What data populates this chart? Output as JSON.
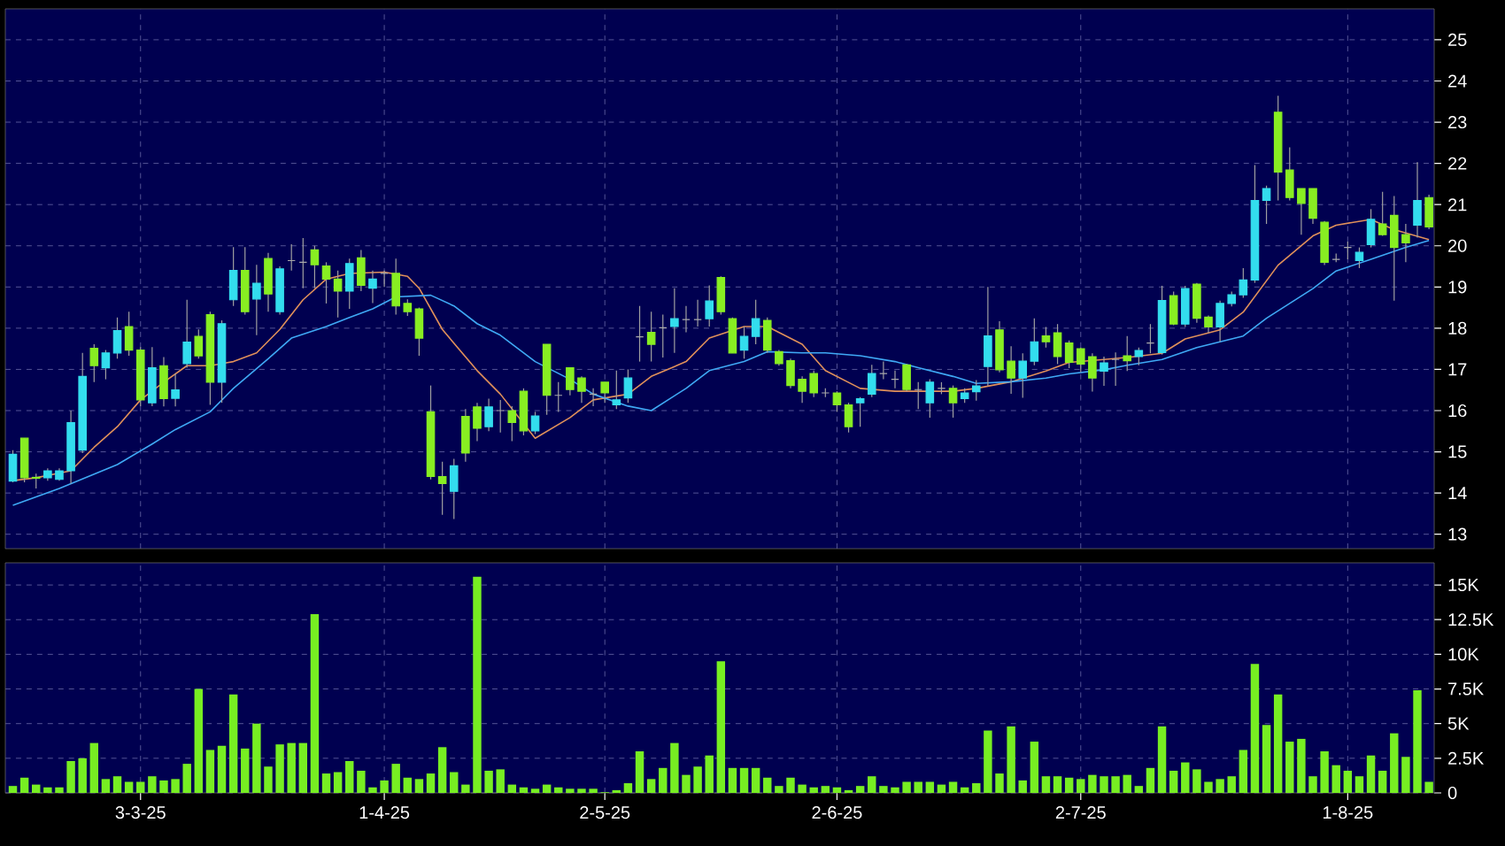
{
  "chart_data": [
    {
      "type": "candlestick",
      "categories": [
        null,
        null,
        null,
        null,
        null,
        null,
        null,
        null,
        null,
        null,
        null,
        null,
        null,
        null,
        null,
        null,
        null,
        null,
        null,
        null,
        null,
        null,
        null,
        null,
        null,
        null,
        null,
        null,
        null,
        null,
        null,
        null,
        null,
        null,
        null,
        null,
        null,
        null,
        null,
        null,
        null,
        null,
        null,
        null,
        null,
        null,
        null,
        null,
        null,
        null,
        null,
        null,
        null,
        null,
        null,
        null,
        null,
        null,
        null,
        null,
        null,
        null,
        null,
        null,
        null,
        null,
        null,
        null,
        null,
        null,
        null,
        null,
        null,
        null,
        null,
        null,
        null,
        null,
        null,
        null,
        null,
        null,
        null,
        null,
        null,
        null,
        null,
        null,
        null,
        null,
        null,
        null,
        null,
        null,
        null,
        null,
        null,
        null,
        null,
        null,
        null,
        null,
        null,
        null,
        null,
        null,
        null,
        null,
        null,
        null,
        null,
        null,
        null,
        null,
        null,
        null,
        null,
        null,
        null,
        null,
        null,
        null,
        null
      ],
      "ohlc": [
        [
          14.29,
          15.04,
          14.26,
          14.94
        ],
        [
          15.33,
          15.33,
          14.26,
          14.37
        ],
        [
          14.38,
          14.47,
          14.11,
          14.36
        ],
        [
          14.37,
          14.6,
          14.3,
          14.54
        ],
        [
          14.33,
          14.6,
          14.3,
          14.54
        ],
        [
          14.54,
          16.0,
          14.23,
          15.71
        ],
        [
          15.04,
          17.4,
          14.97,
          16.83
        ],
        [
          17.51,
          17.61,
          16.69,
          17.09
        ],
        [
          17.04,
          17.47,
          16.76,
          17.4
        ],
        [
          17.4,
          18.26,
          17.26,
          17.94
        ],
        [
          18.04,
          18.4,
          17.33,
          17.47
        ],
        [
          17.47,
          17.54,
          16.11,
          16.26
        ],
        [
          16.19,
          17.54,
          16.11,
          17.04
        ],
        [
          17.09,
          17.3,
          16.1,
          16.29
        ],
        [
          16.3,
          16.9,
          16.1,
          16.5
        ],
        [
          17.14,
          18.69,
          17.04,
          17.66
        ],
        [
          17.8,
          17.97,
          17.26,
          17.33
        ],
        [
          18.33,
          18.4,
          16.14,
          16.69
        ],
        [
          16.69,
          18.19,
          16.19,
          18.11
        ],
        [
          18.69,
          19.97,
          18.54,
          19.4
        ],
        [
          19.4,
          19.97,
          18.33,
          18.4
        ],
        [
          18.71,
          19.54,
          17.83,
          19.09
        ],
        [
          19.69,
          19.83,
          18.4,
          18.83
        ],
        [
          18.4,
          19.5,
          18.33,
          19.44
        ],
        [
          19.64,
          20.04,
          19.4,
          19.64
        ],
        [
          19.6,
          20.19,
          18.97,
          19.6
        ],
        [
          19.9,
          20.0,
          18.97,
          19.54
        ],
        [
          19.51,
          19.6,
          18.6,
          19.19
        ],
        [
          19.19,
          19.4,
          18.26,
          18.9
        ],
        [
          18.9,
          19.69,
          18.47,
          19.57
        ],
        [
          19.71,
          19.9,
          18.9,
          19.04
        ],
        [
          18.97,
          19.4,
          18.61,
          19.19
        ],
        [
          19.33,
          19.4,
          19.0,
          19.33
        ],
        [
          19.33,
          19.69,
          18.33,
          18.54
        ],
        [
          18.6,
          18.7,
          18.3,
          18.4
        ],
        [
          18.47,
          18.5,
          17.33,
          17.76
        ],
        [
          15.97,
          16.61,
          14.33,
          14.4
        ],
        [
          14.4,
          14.76,
          13.47,
          14.23
        ],
        [
          14.04,
          14.83,
          13.37,
          14.66
        ],
        [
          15.86,
          16.04,
          14.76,
          14.97
        ],
        [
          16.09,
          16.19,
          15.26,
          15.57
        ],
        [
          15.61,
          16.29,
          15.5,
          16.09
        ],
        [
          16.0,
          16.26,
          15.47,
          16.0
        ],
        [
          16.0,
          16.11,
          15.26,
          15.71
        ],
        [
          16.47,
          16.54,
          15.4,
          15.51
        ],
        [
          15.51,
          15.97,
          15.43,
          15.87
        ],
        [
          17.61,
          17.61,
          15.9,
          16.37
        ],
        [
          16.37,
          16.69,
          15.97,
          16.37
        ],
        [
          17.04,
          17.04,
          16.37,
          16.51
        ],
        [
          16.79,
          16.83,
          16.19,
          16.47
        ],
        [
          16.4,
          16.54,
          16.11,
          16.4
        ],
        [
          16.69,
          16.69,
          16.19,
          16.43
        ],
        [
          16.14,
          16.97,
          16.04,
          16.26
        ],
        [
          16.31,
          17.0,
          16.19,
          16.79
        ],
        [
          17.79,
          18.54,
          17.19,
          17.79
        ],
        [
          17.9,
          18.4,
          17.19,
          17.61
        ],
        [
          18.01,
          18.33,
          17.29,
          18.01
        ],
        [
          18.04,
          18.97,
          17.4,
          18.23
        ],
        [
          18.21,
          18.54,
          17.9,
          18.21
        ],
        [
          18.21,
          18.69,
          18.04,
          18.21
        ],
        [
          18.23,
          19.04,
          18.04,
          18.66
        ],
        [
          19.23,
          19.26,
          18.33,
          18.4
        ],
        [
          18.23,
          18.26,
          17.4,
          17.4
        ],
        [
          17.47,
          18.04,
          17.26,
          17.8
        ],
        [
          17.8,
          18.69,
          17.61,
          18.23
        ],
        [
          18.19,
          18.26,
          17.4,
          17.47
        ],
        [
          17.43,
          17.47,
          17.09,
          17.14
        ],
        [
          17.21,
          17.26,
          16.54,
          16.61
        ],
        [
          16.76,
          16.83,
          16.19,
          16.47
        ],
        [
          16.9,
          16.97,
          16.33,
          16.43
        ],
        [
          16.43,
          16.54,
          16.33,
          16.43
        ],
        [
          16.43,
          16.47,
          15.97,
          16.14
        ],
        [
          16.14,
          16.19,
          15.47,
          15.61
        ],
        [
          16.19,
          16.33,
          15.61,
          16.29
        ],
        [
          16.4,
          17.11,
          16.33,
          16.9
        ],
        [
          16.9,
          17.19,
          16.76,
          16.9
        ],
        [
          16.76,
          16.97,
          16.54,
          16.76
        ],
        [
          17.11,
          17.14,
          16.47,
          16.51
        ],
        [
          16.51,
          16.69,
          16.04,
          16.51
        ],
        [
          16.19,
          16.76,
          15.83,
          16.69
        ],
        [
          16.54,
          16.69,
          16.4,
          16.54
        ],
        [
          16.54,
          16.61,
          15.83,
          16.19
        ],
        [
          16.29,
          16.54,
          16.19,
          16.43
        ],
        [
          16.46,
          16.74,
          16.24,
          16.6
        ],
        [
          17.07,
          19.0,
          16.6,
          17.81
        ],
        [
          17.96,
          18.17,
          16.93,
          16.99
        ],
        [
          17.2,
          17.56,
          16.41,
          16.79
        ],
        [
          16.79,
          17.39,
          16.31,
          17.2
        ],
        [
          17.2,
          18.24,
          17.1,
          17.67
        ],
        [
          17.81,
          18.03,
          17.53,
          17.67
        ],
        [
          17.89,
          18.1,
          17.13,
          17.31
        ],
        [
          17.64,
          17.7,
          17.03,
          17.17
        ],
        [
          17.5,
          17.53,
          16.93,
          17.13
        ],
        [
          17.31,
          17.39,
          16.46,
          16.79
        ],
        [
          16.96,
          17.31,
          16.6,
          17.16
        ],
        [
          17.24,
          17.41,
          16.6,
          17.24
        ],
        [
          17.33,
          17.81,
          16.96,
          17.21
        ],
        [
          17.31,
          17.53,
          17.1,
          17.46
        ],
        [
          17.64,
          18.1,
          17.39,
          17.64
        ],
        [
          17.41,
          19.03,
          17.36,
          18.67
        ],
        [
          18.79,
          18.89,
          18.07,
          18.1
        ],
        [
          18.1,
          19.03,
          18.03,
          18.96
        ],
        [
          19.07,
          19.1,
          18.13,
          18.24
        ],
        [
          18.27,
          18.31,
          17.89,
          18.03
        ],
        [
          18.03,
          18.67,
          17.67,
          18.6
        ],
        [
          18.6,
          18.89,
          18.53,
          18.81
        ],
        [
          18.81,
          19.46,
          18.74,
          19.17
        ],
        [
          19.17,
          21.96,
          19.1,
          21.1
        ],
        [
          21.1,
          21.46,
          20.53,
          21.39
        ],
        [
          23.24,
          23.64,
          21.1,
          21.79
        ],
        [
          21.84,
          22.39,
          21.1,
          21.17
        ],
        [
          21.39,
          21.39,
          20.27,
          21.03
        ],
        [
          21.39,
          21.39,
          20.53,
          20.67
        ],
        [
          20.57,
          20.6,
          19.53,
          19.6
        ],
        [
          19.67,
          19.81,
          19.6,
          19.67
        ],
        [
          19.96,
          20.1,
          19.67,
          19.96
        ],
        [
          19.64,
          19.96,
          19.46,
          19.84
        ],
        [
          20.03,
          20.89,
          19.96,
          20.64
        ],
        [
          20.53,
          21.31,
          20.24,
          20.27
        ],
        [
          20.74,
          21.21,
          18.67,
          19.96
        ],
        [
          20.27,
          20.53,
          19.6,
          20.07
        ],
        [
          20.5,
          22.03,
          20.2,
          21.1
        ],
        [
          21.17,
          21.24,
          20.4,
          20.46
        ]
      ],
      "colors": [
        "#33ddee",
        "#88ee22",
        "#88ee22",
        "#33ddee",
        "#33ddee",
        "#33ddee",
        "#33ddee",
        "#88ee22",
        "#33ddee",
        "#33ddee",
        "#88ee22",
        "#88ee22",
        "#33ddee",
        "#88ee22",
        "#33ddee",
        "#33ddee",
        "#88ee22",
        "#88ee22",
        "#33ddee",
        "#33ddee",
        "#88ee22",
        "#33ddee",
        "#88ee22",
        "#33ddee",
        "#aaaaaa",
        "#aaaaaa",
        "#88ee22",
        "#88ee22",
        "#88ee22",
        "#33ddee",
        "#88ee22",
        "#33ddee",
        "#aaaaaa",
        "#88ee22",
        "#88ee22",
        "#88ee22",
        "#88ee22",
        "#88ee22",
        "#33ddee",
        "#88ee22",
        "#88ee22",
        "#33ddee",
        "#aaaaaa",
        "#88ee22",
        "#88ee22",
        "#33ddee",
        "#88ee22",
        "#aaaaaa",
        "#88ee22",
        "#88ee22",
        "#aaaaaa",
        "#88ee22",
        "#33ddee",
        "#33ddee",
        "#aaaaaa",
        "#88ee22",
        "#aaaaaa",
        "#33ddee",
        "#aaaaaa",
        "#aaaaaa",
        "#33ddee",
        "#88ee22",
        "#88ee22",
        "#33ddee",
        "#33ddee",
        "#88ee22",
        "#88ee22",
        "#88ee22",
        "#88ee22",
        "#88ee22",
        "#aaaaaa",
        "#88ee22",
        "#88ee22",
        "#33ddee",
        "#33ddee",
        "#aaaaaa",
        "#aaaaaa",
        "#88ee22",
        "#aaaaaa",
        "#33ddee",
        "#aaaaaa",
        "#88ee22",
        "#33ddee",
        "#33ddee",
        "#33ddee",
        "#88ee22",
        "#88ee22",
        "#33ddee",
        "#33ddee",
        "#88ee22",
        "#88ee22",
        "#88ee22",
        "#88ee22",
        "#88ee22",
        "#33ddee",
        "#aaaaaa",
        "#88ee22",
        "#33ddee",
        "#aaaaaa",
        "#33ddee",
        "#88ee22",
        "#33ddee",
        "#88ee22",
        "#88ee22",
        "#33ddee",
        "#33ddee",
        "#33ddee",
        "#33ddee",
        "#33ddee",
        "#88ee22",
        "#88ee22",
        "#88ee22",
        "#88ee22",
        "#88ee22",
        "#aaaaaa",
        "#aaaaaa",
        "#33ddee",
        "#33ddee",
        "#88ee22",
        "#88ee22",
        "#88ee22",
        "#33ddee",
        "#88ee22"
      ],
      "series": [
        {
          "type": "line",
          "color": "#e0905a",
          "values": [
            14.3,
            null,
            14.37,
            null,
            null,
            14.54,
            null,
            15.11,
            null,
            15.61,
            null,
            16.26,
            null,
            16.69,
            null,
            17.09,
            null,
            17.09,
            null,
            17.19,
            null,
            17.4,
            null,
            17.97,
            null,
            18.69,
            null,
            19.19,
            null,
            19.33,
            null,
            null,
            19.36,
            null,
            19.26,
            18.97,
            null,
            17.97,
            null,
            null,
            16.97,
            null,
            16.4,
            null,
            null,
            15.33,
            null,
            null,
            15.83,
            null,
            16.26,
            null,
            null,
            16.4,
            null,
            16.83,
            null,
            null,
            17.19,
            null,
            17.76,
            null,
            null,
            18.04,
            null,
            18.04,
            null,
            null,
            17.61,
            null,
            16.97,
            null,
            null,
            16.54,
            null,
            null,
            16.47,
            null,
            16.47,
            null,
            null,
            16.47,
            null,
            16.54,
            null,
            null,
            16.7,
            null,
            null,
            16.96,
            null,
            17.17,
            null,
            null,
            17.24,
            null,
            17.29,
            null,
            null,
            17.39,
            null,
            17.74,
            null,
            null,
            17.96,
            null,
            18.39,
            null,
            null,
            19.53,
            null,
            null,
            20.24,
            null,
            20.5,
            null,
            null,
            20.64,
            null,
            20.39,
            null,
            null,
            20.15
          ]
        },
        {
          "type": "line",
          "color": "#3fa9f5",
          "values": [
            13.7,
            null,
            null,
            null,
            14.11,
            null,
            null,
            null,
            null,
            14.69,
            null,
            null,
            15.19,
            null,
            15.54,
            null,
            null,
            15.97,
            null,
            16.54,
            null,
            null,
            17.26,
            null,
            17.76,
            null,
            null,
            18.04,
            null,
            18.26,
            null,
            18.47,
            null,
            18.76,
            null,
            null,
            18.8,
            null,
            18.54,
            null,
            18.11,
            null,
            17.83,
            null,
            null,
            17.19,
            null,
            null,
            16.76,
            null,
            16.4,
            null,
            null,
            16.11,
            null,
            16.0,
            null,
            null,
            16.54,
            null,
            16.97,
            null,
            null,
            17.19,
            null,
            17.43,
            null,
            null,
            17.4,
            null,
            17.4,
            null,
            null,
            17.33,
            null,
            null,
            17.19,
            null,
            17.04,
            null,
            null,
            16.83,
            null,
            16.66,
            null,
            null,
            16.7,
            null,
            null,
            16.79,
            null,
            16.89,
            null,
            null,
            16.99,
            null,
            17.1,
            null,
            null,
            17.24,
            null,
            null,
            17.53,
            null,
            null,
            null,
            17.81,
            null,
            18.24,
            null,
            null,
            null,
            18.96,
            null,
            19.39,
            null,
            null,
            19.67,
            null,
            null,
            19.96,
            null,
            20.13
          ]
        }
      ],
      "ylim": [
        12.65,
        25.75
      ],
      "yticks": [
        13,
        14,
        15,
        16,
        17,
        18,
        19,
        20,
        21,
        22,
        23,
        24,
        25
      ],
      "grid": true,
      "tick_labels": "y"
    },
    {
      "type": "bar",
      "categories": [
        null,
        null,
        null,
        null,
        null,
        null,
        null,
        null,
        null,
        null,
        null,
        "3-3-25",
        null,
        null,
        null,
        null,
        null,
        null,
        null,
        null,
        null,
        null,
        null,
        null,
        null,
        null,
        null,
        null,
        null,
        null,
        null,
        null,
        "1-4-25",
        null,
        null,
        null,
        null,
        null,
        null,
        null,
        null,
        null,
        null,
        null,
        null,
        null,
        null,
        null,
        null,
        null,
        null,
        "2-5-25",
        null,
        null,
        null,
        null,
        null,
        null,
        null,
        null,
        null,
        null,
        null,
        null,
        null,
        null,
        null,
        null,
        null,
        null,
        null,
        "2-6-25",
        null,
        null,
        null,
        null,
        null,
        null,
        null,
        null,
        null,
        null,
        null,
        null,
        null,
        null,
        null,
        null,
        null,
        null,
        null,
        null,
        "2-7-25",
        null,
        null,
        null,
        null,
        null,
        null,
        null,
        null,
        null,
        null,
        null,
        null,
        null,
        null,
        null,
        null,
        null,
        null,
        null,
        null,
        null,
        null,
        "1-8-25",
        null,
        null,
        null,
        null,
        null,
        null,
        null
      ],
      "values": [
        500,
        1100,
        600,
        400,
        400,
        2300,
        2500,
        3600,
        1000,
        1200,
        800,
        800,
        1200,
        900,
        1000,
        2100,
        7500,
        3100,
        3400,
        7100,
        3200,
        5000,
        1900,
        3500,
        3600,
        3600,
        12900,
        1400,
        1500,
        2300,
        1600,
        400,
        900,
        2100,
        1100,
        1000,
        1400,
        3300,
        1500,
        600,
        15600,
        1600,
        1700,
        600,
        400,
        300,
        600,
        400,
        300,
        300,
        300,
        50,
        200,
        700,
        3000,
        1000,
        1800,
        3600,
        1300,
        1900,
        2700,
        9500,
        1800,
        1800,
        1800,
        1100,
        500,
        1100,
        600,
        400,
        500,
        400,
        200,
        500,
        1200,
        500,
        400,
        800,
        800,
        800,
        600,
        800,
        400,
        700,
        4500,
        1400,
        4800,
        900,
        3700,
        1200,
        1200,
        1100,
        1000,
        1300,
        1200,
        1200,
        1300,
        500,
        1800,
        4800,
        1600,
        2200,
        1700,
        800,
        1000,
        1200,
        3100,
        9300,
        4900,
        7100,
        3700,
        3900,
        1200,
        3000,
        2000,
        1600,
        1200,
        2700,
        1600,
        4300,
        2600,
        7400,
        800
      ],
      "color": "#77ee22",
      "ylim": [
        0,
        16600
      ],
      "yticks": [
        0,
        {
          "value": 2500,
          "label": "2.5K"
        },
        {
          "value": 5000,
          "label": "5K"
        },
        {
          "value": 7500,
          "label": "7.5K"
        },
        {
          "value": 10000,
          "label": "10K"
        },
        {
          "value": 12500,
          "label": "12.5K"
        },
        {
          "value": 15000,
          "label": "15K"
        }
      ],
      "grid": true
    }
  ]
}
